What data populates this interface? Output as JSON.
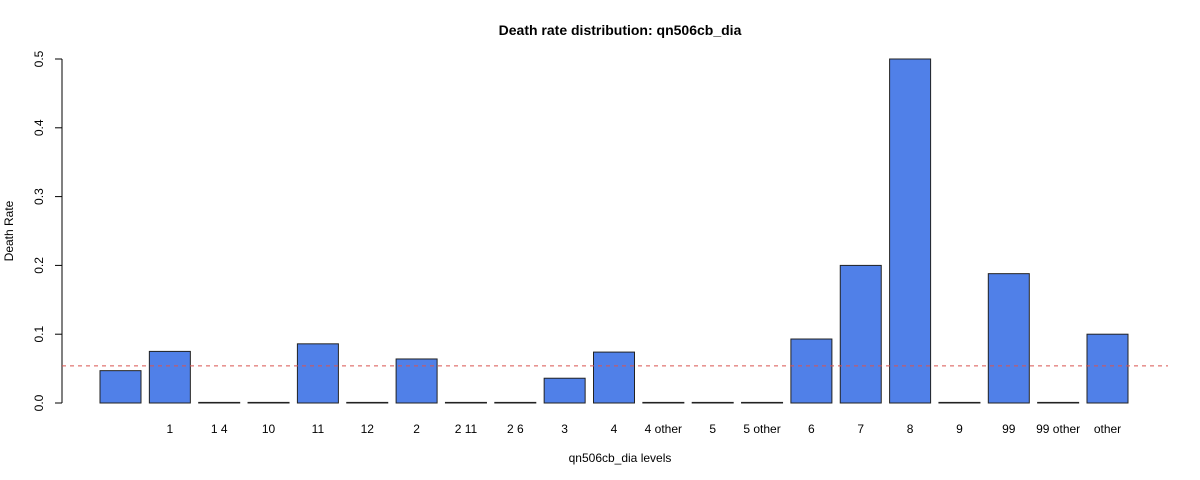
{
  "chart_data": {
    "type": "bar",
    "title": "Death rate distribution: qn506cb_dia",
    "xlabel": "qn506cb_dia levels",
    "ylabel": "Death Rate",
    "categories": [
      "",
      "1",
      "1 4",
      "10",
      "11",
      "12",
      "2",
      "2 11",
      "2 6",
      "3",
      "4",
      "4 other",
      "5",
      "5 other",
      "6",
      "7",
      "8",
      "9",
      "99",
      "99 other",
      "other"
    ],
    "values": [
      0.047,
      0.075,
      0.0,
      0.0,
      0.086,
      0.0,
      0.064,
      0.0,
      0.0,
      0.036,
      0.074,
      0.0,
      0.0,
      0.0,
      0.093,
      0.2,
      0.5,
      0.0,
      0.188,
      0.0,
      0.1
    ],
    "ylim": [
      0,
      0.5
    ],
    "yticks": [
      "0.0",
      "0.1",
      "0.2",
      "0.3",
      "0.4",
      "0.5"
    ],
    "reference_line": 0.054,
    "grid": false,
    "colors": {
      "bar_fill": "#5080E8",
      "bar_stroke": "#222222",
      "reference_line": "#D9534F",
      "axis": "#000000"
    }
  }
}
